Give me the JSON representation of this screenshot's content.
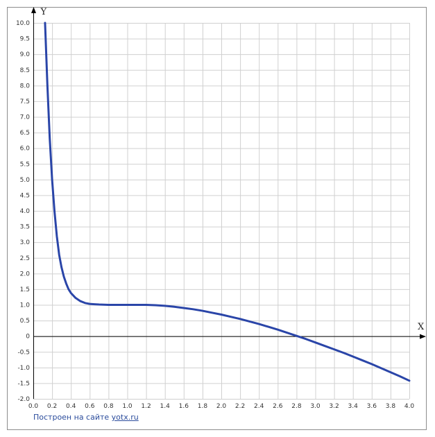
{
  "chart_data": {
    "type": "line",
    "title": "",
    "xlabel": "X",
    "ylabel": "Y",
    "xlim": [
      0,
      4.0
    ],
    "ylim": [
      -2.0,
      10.0
    ],
    "grid": true,
    "x_ticks": [
      "0.0",
      "0.2",
      "0.4",
      "0.6",
      "0.8",
      "1.0",
      "1.2",
      "1.4",
      "1.6",
      "1.8",
      "2.0",
      "2.2",
      "2.4",
      "2.6",
      "2.8",
      "3.0",
      "3.2",
      "3.4",
      "3.6",
      "3.8",
      "4.0"
    ],
    "y_ticks": [
      "-2.0",
      "-1.5",
      "-1.0",
      "-0.5",
      "0",
      "0.5",
      "1.0",
      "1.5",
      "2.0",
      "2.5",
      "3.0",
      "3.5",
      "4.0",
      "4.5",
      "5.0",
      "5.5",
      "6.0",
      "6.5",
      "7.0",
      "7.5",
      "8.0",
      "8.5",
      "9.0",
      "9.5",
      "10.0"
    ],
    "line_color": "#2a45a8",
    "series": [
      {
        "x": [
          0.125,
          0.15,
          0.175,
          0.2,
          0.225,
          0.25,
          0.275,
          0.3,
          0.325,
          0.35,
          0.375,
          0.4,
          0.45,
          0.5,
          0.55,
          0.6,
          0.65,
          0.7,
          0.8,
          0.9,
          1.0,
          1.1,
          1.2,
          1.3,
          1.4,
          1.5,
          1.6,
          1.7,
          1.8,
          1.9,
          2.0,
          2.1,
          2.2,
          2.3,
          2.4,
          2.5,
          2.6,
          2.7,
          2.8,
          2.9,
          3.0,
          3.1,
          3.2,
          3.3,
          3.4,
          3.5,
          3.6,
          3.7,
          3.8,
          3.9,
          4.0
        ],
        "values": [
          10.0,
          8.0,
          6.3,
          5.0,
          4.0,
          3.2,
          2.6,
          2.2,
          1.9,
          1.68,
          1.5,
          1.38,
          1.22,
          1.12,
          1.06,
          1.03,
          1.02,
          1.01,
          1.0,
          1.0,
          1.0,
          1.0,
          1.0,
          0.99,
          0.97,
          0.94,
          0.9,
          0.86,
          0.81,
          0.75,
          0.69,
          0.62,
          0.55,
          0.47,
          0.39,
          0.3,
          0.21,
          0.11,
          0.01,
          -0.09,
          -0.2,
          -0.31,
          -0.42,
          -0.53,
          -0.65,
          -0.77,
          -0.89,
          -1.02,
          -1.15,
          -1.28,
          -1.42
        ]
      }
    ]
  },
  "credit": {
    "text": "Построен на сайте",
    "link": "yotx.ru"
  }
}
